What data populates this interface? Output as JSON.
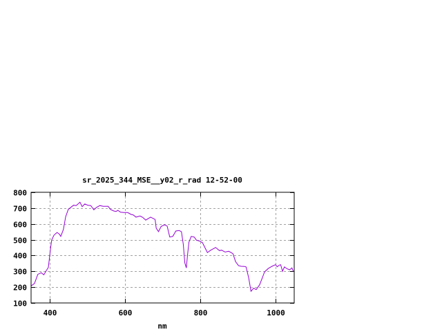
{
  "chart_data": {
    "type": "line",
    "title": "sr_2025_344_MSE__y02_r_rad 12-52-00",
    "xlabel": "nm",
    "ylabel": "",
    "xlim": [
      350,
      1050
    ],
    "ylim": [
      100,
      800
    ],
    "xticks": [
      400,
      600,
      800,
      1000
    ],
    "yticks": [
      100,
      200,
      300,
      400,
      500,
      600,
      700,
      800
    ],
    "grid": true,
    "legend": "none",
    "line_color": "#9400d3",
    "series": [
      {
        "x": [
          350,
          359,
          368,
          377,
          384,
          390,
          396,
          402,
          405,
          411,
          419,
          425,
          429,
          436,
          442,
          449,
          457,
          463,
          470,
          480,
          486,
          493,
          501,
          509,
          517,
          524,
          533,
          542,
          555,
          561,
          570,
          576,
          581,
          588,
          597,
          607,
          616,
          622,
          629,
          640,
          647,
          655,
          668,
          680,
          683,
          689,
          696,
          705,
          712,
          719,
          727,
          735,
          744,
          750,
          755,
          759,
          763,
          766,
          770,
          776,
          784,
          790,
          799,
          806,
          819,
          828,
          841,
          851,
          857,
          866,
          876,
          887,
          894,
          902,
          909,
          918,
          922,
          929,
          935,
          942,
          949,
          958,
          964,
          971,
          981,
          991,
          1000,
          1005,
          1010,
          1014,
          1019,
          1024,
          1031,
          1038,
          1044,
          1048
        ],
        "y": [
          208,
          223,
          281,
          291,
          278,
          303,
          325,
          449,
          499,
          529,
          546,
          536,
          521,
          565,
          646,
          692,
          707,
          718,
          716,
          737,
          709,
          726,
          718,
          716,
          689,
          704,
          716,
          711,
          711,
          692,
          682,
          679,
          686,
          674,
          672,
          672,
          660,
          657,
          643,
          650,
          641,
          624,
          643,
          628,
          573,
          551,
          584,
          594,
          587,
          517,
          521,
          555,
          558,
          551,
          471,
          354,
          322,
          398,
          485,
          521,
          517,
          497,
          491,
          481,
          419,
          434,
          451,
          431,
          434,
          422,
          427,
          412,
          361,
          336,
          332,
          331,
          328,
          259,
          174,
          193,
          185,
          215,
          252,
          296,
          318,
          332,
          342,
          329,
          339,
          342,
          300,
          328,
          316,
          310,
          322,
          298
        ]
      }
    ]
  }
}
